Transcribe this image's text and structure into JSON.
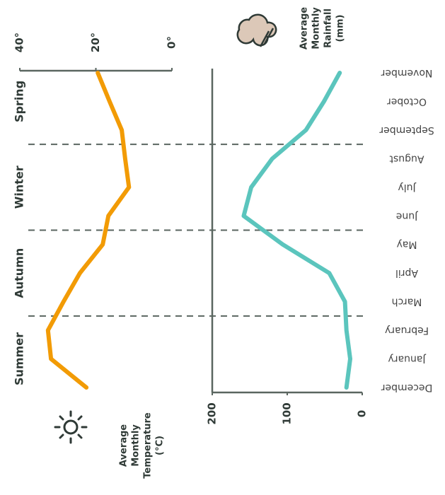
{
  "chart_data": {
    "type": "line",
    "categories": [
      "December",
      "January",
      "February",
      "March",
      "April",
      "May",
      "June",
      "July",
      "August",
      "September",
      "October",
      "November"
    ],
    "seasons": [
      "Summer",
      "Autumn",
      "Winter",
      "Spring"
    ],
    "series": [
      {
        "name": "Average Monthly Temperature (°C)",
        "color": "#f29b05",
        "axis": "y",
        "values": [
          22.5,
          31.8,
          32.6,
          28.5,
          24.2,
          18.2,
          16.7,
          11.3,
          12.3,
          13.2,
          16.4,
          19.5
        ]
      },
      {
        "name": "Average Monthly Rainfall (mm)",
        "color": "#5bc5bd",
        "axis": "y2",
        "values": [
          21,
          16,
          21,
          23,
          44,
          106,
          158,
          148,
          120,
          75,
          51,
          30
        ]
      }
    ],
    "ylim": [
      0,
      40
    ],
    "yticks": [
      {
        "value": 0,
        "label": "0°"
      },
      {
        "value": 20,
        "label": "20°"
      },
      {
        "value": 40,
        "label": "40°"
      }
    ],
    "y2lim": [
      0,
      200
    ],
    "y2ticks": [
      0,
      100,
      200
    ]
  }
}
